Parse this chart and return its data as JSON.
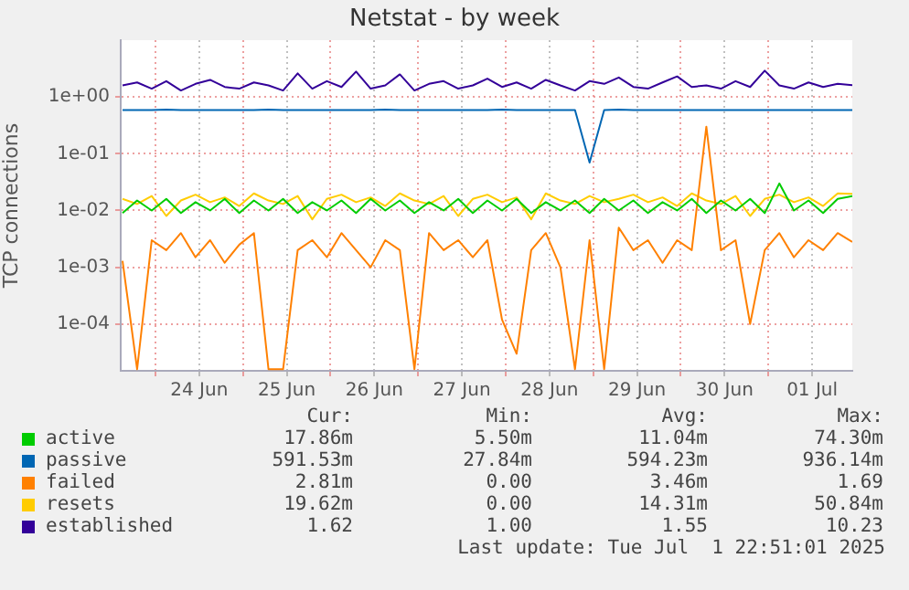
{
  "chart_data": {
    "type": "line",
    "title": "Netstat - by week",
    "ylabel": "TCP connections",
    "log": true,
    "grid": true,
    "legend": "bottom",
    "marker": "none",
    "line_style": "solid",
    "x": [
      "--06-23T15:00",
      "--06-23T19:00",
      "--06-23T23:00",
      "--06-24T03:00",
      "--06-24T07:00",
      "--06-24T11:00",
      "--06-24T15:00",
      "--06-24T19:00",
      "--06-24T23:00",
      "--06-25T03:00",
      "--06-25T07:00",
      "--06-25T11:00",
      "--06-25T15:00",
      "--06-25T19:00",
      "--06-25T23:00",
      "--06-26T03:00",
      "--06-26T07:00",
      "--06-26T11:00",
      "--06-26T15:00",
      "--06-26T19:00",
      "--06-26T23:00",
      "--06-27T03:00",
      "--06-27T07:00",
      "--06-27T11:00",
      "--06-27T15:00",
      "--06-27T19:00",
      "--06-27T23:00",
      "--06-28T03:00",
      "--06-28T07:00",
      "--06-28T11:00",
      "--06-28T15:00",
      "--06-28T19:00",
      "--06-28T23:00",
      "--06-29T03:00",
      "--06-29T07:00",
      "--06-29T11:00",
      "--06-29T15:00",
      "--06-29T19:00",
      "--06-29T23:00",
      "--06-30T03:00",
      "--06-30T07:00",
      "--06-30T11:00",
      "--06-30T15:00",
      "--06-30T19:00",
      "--06-30T23:00",
      "--07-01T03:00",
      "--07-01T07:00",
      "--07-01T11:00",
      "--07-01T15:00",
      "--07-01T19:00",
      "--07-01T23:00"
    ],
    "xlim": [
      "--06-23T14:30",
      "--07-01T23:00"
    ],
    "xticks": [
      {
        "value": "--06-24T00:00",
        "label": null
      },
      {
        "value": "--06-24T12:00",
        "label": "24 Jun"
      },
      {
        "value": "--06-25T00:00",
        "label": null
      },
      {
        "value": "--06-25T12:00",
        "label": "25 Jun"
      },
      {
        "value": "--06-26T00:00",
        "label": null
      },
      {
        "value": "--06-26T12:00",
        "label": "26 Jun"
      },
      {
        "value": "--06-27T00:00",
        "label": null
      },
      {
        "value": "--06-27T12:00",
        "label": "27 Jun"
      },
      {
        "value": "--06-28T00:00",
        "label": null
      },
      {
        "value": "--06-28T12:00",
        "label": "28 Jun"
      },
      {
        "value": "--06-29T00:00",
        "label": null
      },
      {
        "value": "--06-29T12:00",
        "label": "29 Jun"
      },
      {
        "value": "--06-30T00:00",
        "label": null
      },
      {
        "value": "--06-30T12:00",
        "label": "30 Jun"
      },
      {
        "value": "--07-01T00:00",
        "label": null
      },
      {
        "value": "--07-01T12:00",
        "label": "01 Jul"
      }
    ],
    "ylim": [
      1.5e-05,
      10
    ],
    "yticks": [
      {
        "value": 0.0001,
        "label": "1e-04"
      },
      {
        "value": 0.001,
        "label": "1e-03"
      },
      {
        "value": 0.01,
        "label": "1e-02"
      },
      {
        "value": 0.1,
        "label": "1e-01"
      },
      {
        "value": 1,
        "label": "1e+00"
      }
    ],
    "series": [
      {
        "name": "active",
        "color": "#00cc00",
        "values": [
          0.009,
          0.015,
          0.01,
          0.016,
          0.009,
          0.014,
          0.01,
          0.016,
          0.009,
          0.015,
          0.01,
          0.016,
          0.009,
          0.014,
          0.01,
          0.015,
          0.009,
          0.016,
          0.01,
          0.015,
          0.009,
          0.014,
          0.01,
          0.016,
          0.009,
          0.015,
          0.01,
          0.016,
          0.009,
          0.014,
          0.01,
          0.015,
          0.009,
          0.016,
          0.01,
          0.015,
          0.009,
          0.014,
          0.01,
          0.016,
          0.009,
          0.015,
          0.01,
          0.016,
          0.009,
          0.03,
          0.01,
          0.015,
          0.009,
          0.016,
          0.018
        ]
      },
      {
        "name": "passive",
        "color": "#0066b3",
        "values": [
          0.59,
          0.59,
          0.59,
          0.6,
          0.59,
          0.59,
          0.59,
          0.59,
          0.59,
          0.59,
          0.6,
          0.59,
          0.59,
          0.59,
          0.59,
          0.59,
          0.59,
          0.59,
          0.6,
          0.59,
          0.59,
          0.59,
          0.59,
          0.59,
          0.59,
          0.59,
          0.6,
          0.59,
          0.59,
          0.59,
          0.59,
          0.59,
          0.07,
          0.59,
          0.6,
          0.59,
          0.59,
          0.59,
          0.59,
          0.59,
          0.59,
          0.59,
          0.59,
          0.59,
          0.59,
          0.59,
          0.59,
          0.59,
          0.59,
          0.59,
          0.59
        ]
      },
      {
        "name": "failed",
        "color": "#ff8000",
        "values": [
          0.0013,
          1.6e-05,
          0.003,
          0.002,
          0.004,
          0.0015,
          0.003,
          0.0012,
          0.0025,
          0.004,
          1.6e-05,
          1.6e-05,
          0.002,
          0.003,
          0.0015,
          0.004,
          0.002,
          0.001,
          0.003,
          0.002,
          1.6e-05,
          0.004,
          0.002,
          0.003,
          0.0015,
          0.003,
          0.00012,
          3e-05,
          0.002,
          0.004,
          0.001,
          1.6e-05,
          0.003,
          1.6e-05,
          0.005,
          0.002,
          0.003,
          0.0012,
          0.003,
          0.002,
          0.3,
          0.002,
          0.003,
          0.0001,
          0.002,
          0.004,
          0.0015,
          0.003,
          0.002,
          0.004,
          0.0028
        ]
      },
      {
        "name": "resets",
        "color": "#ffcc00",
        "values": [
          0.016,
          0.013,
          0.018,
          0.008,
          0.015,
          0.019,
          0.014,
          0.017,
          0.012,
          0.02,
          0.015,
          0.013,
          0.018,
          0.007,
          0.016,
          0.019,
          0.014,
          0.017,
          0.012,
          0.02,
          0.015,
          0.013,
          0.018,
          0.008,
          0.016,
          0.019,
          0.014,
          0.017,
          0.007,
          0.02,
          0.015,
          0.013,
          0.018,
          0.014,
          0.016,
          0.019,
          0.014,
          0.017,
          0.012,
          0.02,
          0.015,
          0.013,
          0.018,
          0.008,
          0.016,
          0.019,
          0.014,
          0.017,
          0.012,
          0.02,
          0.0196
        ]
      },
      {
        "name": "established",
        "color": "#330099",
        "values": [
          1.6,
          1.8,
          1.4,
          1.9,
          1.3,
          1.7,
          2.0,
          1.5,
          1.4,
          1.8,
          1.6,
          1.3,
          2.6,
          1.4,
          1.9,
          1.5,
          2.8,
          1.4,
          1.6,
          2.5,
          1.3,
          1.7,
          1.9,
          1.4,
          1.6,
          2.1,
          1.5,
          1.8,
          1.4,
          2.0,
          1.6,
          1.3,
          1.9,
          1.7,
          2.2,
          1.5,
          1.4,
          1.8,
          2.3,
          1.5,
          1.6,
          1.4,
          1.9,
          1.5,
          2.9,
          1.6,
          1.4,
          1.8,
          1.5,
          1.7,
          1.62
        ]
      }
    ],
    "annotations": [
      "Cur:",
      "Min:",
      "Avg:",
      "Max:",
      "17.86m",
      "5.50m",
      "11.04m",
      "74.30m",
      "591.53m",
      "27.84m",
      "594.23m",
      "936.14m",
      "2.81m",
      "0.00",
      "3.46m",
      "1.69",
      "19.62m",
      "0.00",
      "14.31m",
      "50.84m",
      "1.62",
      "1.00",
      "1.55",
      "10.23",
      "Last update: Tue Jul  1 22:51:01 2025"
    ]
  }
}
